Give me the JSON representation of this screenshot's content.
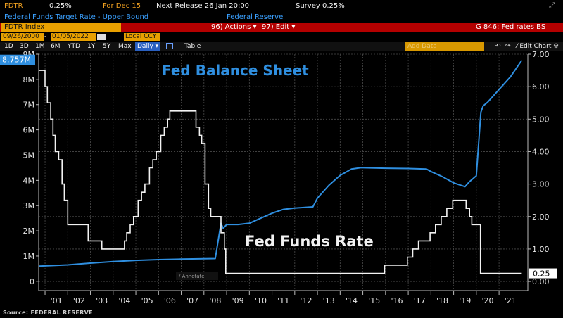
{
  "header": {
    "ticker": "FDTR",
    "value": "0.25%",
    "for_label": "For Dec 15",
    "next_release": "Next Release 26 Jan 20:00",
    "survey": "Survey 0.25%",
    "subtitle": "Federal Funds Target Rate - Upper Bound",
    "source_org": "Federal Reserve"
  },
  "toolbar": {
    "index_field": "FDTR Index",
    "actions": "96) Actions ▾",
    "edit": "97) Edit ▾",
    "chart_title": "G 846: Fed rates BS",
    "start_date": "09/26/2000",
    "end_date": "01/05/2022",
    "currency": "Local CCY",
    "ranges": [
      "1D",
      "3D",
      "1M",
      "6M",
      "YTD",
      "1Y",
      "5Y",
      "Max"
    ],
    "period": "Daily ▾",
    "table": "Table",
    "add_data": "Add Data",
    "edit_chart": "⁄ Edit Chart",
    "annotate": "∕ Annotate"
  },
  "colors": {
    "balance_line": "#2f8fe0",
    "rate_line": "#f2f2f2",
    "red_bar": "#b40000",
    "amber": "#e8a000",
    "grid": "#4a4a4a"
  },
  "chart_data": {
    "type": "line",
    "annotations": {
      "balance_title": "Fed Balance Sheet",
      "rate_title": "Fed Funds Rate"
    },
    "x_labels": [
      "'01",
      "'02",
      "'03",
      "'04",
      "'05",
      "'06",
      "'07",
      "'08",
      "'09",
      "'10",
      "'11",
      "'12",
      "'13",
      "'14",
      "'15",
      "'16",
      "'17",
      "'18",
      "'19",
      "'20",
      "'21"
    ],
    "x_range": [
      2000.72,
      2022.02
    ],
    "left_axis": {
      "ticks": [
        "0",
        "1M",
        "2M",
        "3M",
        "4M",
        "5M",
        "6M",
        "7M",
        "8M",
        "9M"
      ],
      "range": [
        -0.2,
        9.0
      ],
      "last_value_label": "8.757M"
    },
    "right_axis": {
      "ticks": [
        "0.00",
        "1.00",
        "2.00",
        "3.00",
        "4.00",
        "5.00",
        "6.00",
        "7.00"
      ],
      "range": [
        -0.15,
        7.0
      ],
      "last_value_label": "0.25"
    },
    "series": [
      {
        "name": "Fed Balance Sheet",
        "axis": "left",
        "unit": "millions USD",
        "x": [
          2000.72,
          2002,
          2003,
          2004,
          2005,
          2006,
          2007,
          2008.5,
          2008.75,
          2008.85,
          2009,
          2009.5,
          2010,
          2010.5,
          2011,
          2011.5,
          2012,
          2012.8,
          2013,
          2013.5,
          2014,
          2014.5,
          2014.9,
          2015,
          2016,
          2017,
          2017.8,
          2018,
          2018.5,
          2019,
          2019.5,
          2019.7,
          2020.0,
          2020.2,
          2020.3,
          2020.5,
          2021,
          2021.5,
          2022.0
        ],
        "values": [
          0.6,
          0.65,
          0.72,
          0.78,
          0.83,
          0.86,
          0.88,
          0.9,
          2.3,
          2.1,
          2.25,
          2.25,
          2.3,
          2.5,
          2.7,
          2.85,
          2.9,
          2.95,
          3.3,
          3.8,
          4.2,
          4.45,
          4.5,
          4.5,
          4.48,
          4.47,
          4.45,
          4.35,
          4.15,
          3.9,
          3.75,
          3.95,
          4.18,
          6.7,
          6.95,
          7.1,
          7.6,
          8.1,
          8.757
        ]
      },
      {
        "name": "Fed Funds Rate",
        "axis": "right",
        "unit": "percent",
        "x": [
          2000.72,
          2001.0,
          2001.1,
          2001.25,
          2001.35,
          2001.45,
          2001.6,
          2001.75,
          2001.85,
          2002.0,
          2002.9,
          2003.5,
          2004.5,
          2004.6,
          2004.75,
          2004.9,
          2005.1,
          2005.25,
          2005.4,
          2005.6,
          2005.75,
          2005.9,
          2006.1,
          2006.25,
          2006.4,
          2006.5,
          2007.65,
          2007.8,
          2007.9,
          2008.05,
          2008.2,
          2008.3,
          2008.75,
          2008.9,
          2008.96,
          2015.96,
          2016.96,
          2017.2,
          2017.45,
          2017.96,
          2018.2,
          2018.45,
          2018.7,
          2018.96,
          2019.55,
          2019.7,
          2019.8,
          2020.18,
          2022.0
        ],
        "values": [
          6.5,
          6.0,
          5.5,
          5.0,
          4.5,
          4.0,
          3.75,
          3.0,
          2.5,
          1.75,
          1.25,
          1.0,
          1.25,
          1.5,
          1.75,
          2.0,
          2.5,
          2.75,
          3.0,
          3.5,
          3.75,
          4.0,
          4.5,
          4.75,
          5.0,
          5.25,
          4.75,
          4.5,
          4.25,
          3.0,
          2.25,
          2.0,
          1.5,
          1.0,
          0.25,
          0.5,
          0.75,
          1.0,
          1.25,
          1.5,
          1.75,
          2.0,
          2.25,
          2.5,
          2.25,
          2.0,
          1.75,
          0.25,
          0.25
        ]
      }
    ]
  },
  "footer": {
    "source": "Source: FEDERAL RESERVE"
  }
}
